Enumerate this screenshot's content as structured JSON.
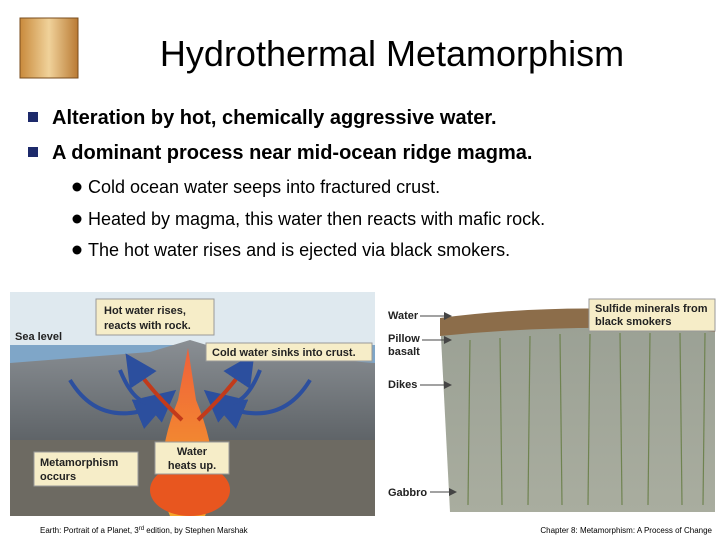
{
  "title": "Hydrothermal Metamorphism",
  "bullets": [
    "Alteration by hot, chemically aggressive water.",
    "A dominant process near mid-ocean ridge magma."
  ],
  "sub_bullets": [
    "Cold ocean water seeps into fractured crust.",
    "Heated by magma, this water then reacts with mafic rock.",
    "The hot water rises and is ejected via black smokers."
  ],
  "left_figure": {
    "hot_water": [
      "Hot water rises,",
      "reacts with rock."
    ],
    "sea_level": "Sea level",
    "cold_water": "Cold water sinks into crust.",
    "metamorphism": [
      "Metamorphism",
      "occurs"
    ],
    "heats": [
      "Water",
      "heats up."
    ]
  },
  "right_figure": {
    "water": "Water",
    "pillow": [
      "Pillow",
      "basalt"
    ],
    "dikes": "Dikes",
    "gabbro": "Gabbro",
    "sulfide": [
      "Sulfide minerals from",
      "black smokers"
    ]
  },
  "footer": {
    "left": [
      "Earth: Portrait of a Planet, 3",
      "rd",
      " edition, by Stephen Marshak"
    ],
    "right": "Chapter 8: Metamorphism: A Process of Change"
  }
}
